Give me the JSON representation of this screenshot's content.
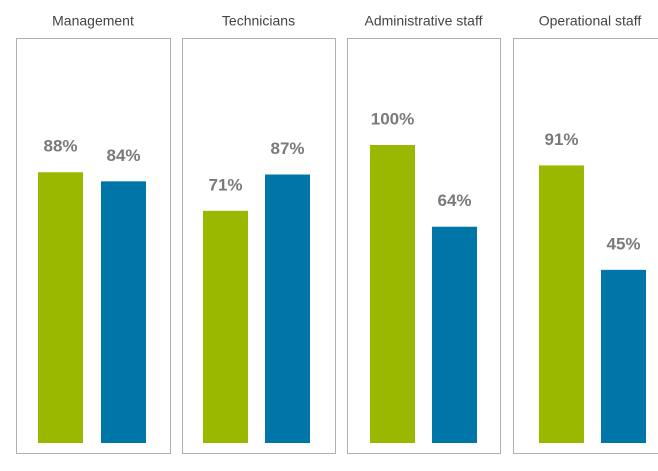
{
  "chart_data": {
    "type": "bar",
    "categories": [
      "Management",
      "Technicians",
      "Administrative staff",
      "Operational staff"
    ],
    "series": [
      {
        "color": "#9bb800",
        "values": [
          88,
          71,
          100,
          91
        ],
        "value_labels": [
          "88%",
          "71%",
          "100%",
          "91%"
        ]
      },
      {
        "color": "#0076a8",
        "values": [
          84,
          87,
          64,
          45
        ],
        "value_labels": [
          "84%",
          "87%",
          "64%",
          "45%"
        ]
      }
    ]
  }
}
